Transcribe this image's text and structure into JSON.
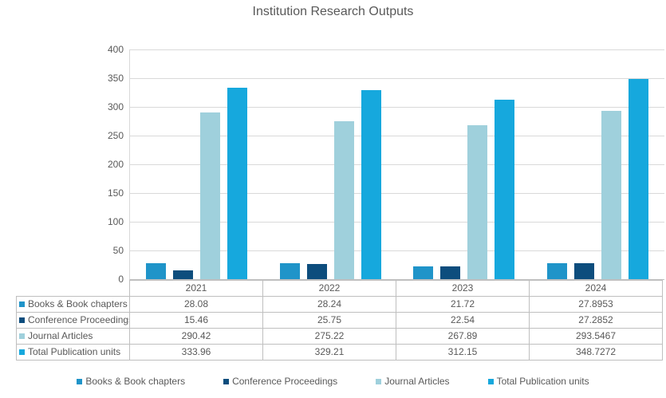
{
  "chart_data": {
    "type": "bar",
    "title": "Institution Research Outputs",
    "categories": [
      "2021",
      "2022",
      "2023",
      "2024"
    ],
    "series": [
      {
        "name": "Books & Book chapters",
        "color": "#1f94c9",
        "values": [
          28.08,
          28.24,
          21.72,
          27.8953
        ]
      },
      {
        "name": "Conference Proceedings",
        "color": "#0d4d7d",
        "values": [
          15.46,
          25.75,
          22.54,
          27.2852
        ]
      },
      {
        "name": "Journal Articles",
        "color": "#9fd0dc",
        "values": [
          290.42,
          275.22,
          267.89,
          293.5467
        ]
      },
      {
        "name": "Total Publication units",
        "color": "#16a8dd",
        "values": [
          333.96,
          329.21,
          312.15,
          348.7272
        ]
      }
    ],
    "xlabel": "",
    "ylabel": "",
    "ylim": [
      0,
      400
    ],
    "y_ticks": [
      0,
      50,
      100,
      150,
      200,
      250,
      300,
      350,
      400
    ],
    "grid": true,
    "legend_position": "bottom",
    "data_table_shown": true
  },
  "colors": {
    "text": "#595959",
    "gridline": "#d9d9d9",
    "table_border": "#bfbfbf",
    "background": "#ffffff"
  }
}
